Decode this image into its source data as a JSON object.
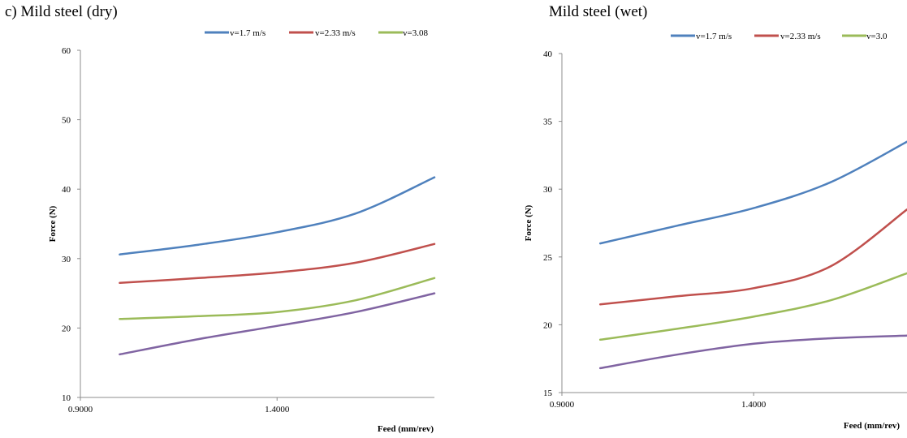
{
  "figure": {
    "left_panel_label": "c)    Mild steel (dry)",
    "right_panel_label": "Mild steel (wet)"
  },
  "chart_data": [
    {
      "type": "line",
      "title": "",
      "xlabel": "Feed (mm/rev)",
      "ylabel": "Force (N)",
      "xlim": [
        0.9,
        1.8
      ],
      "ylim": [
        10,
        60
      ],
      "xticks": [
        "0.9000",
        "1.4000"
      ],
      "xtick_values": [
        0.9,
        1.4
      ],
      "yticks": [
        "10",
        "20",
        "30",
        "40",
        "50",
        "60"
      ],
      "ytick_values": [
        10,
        20,
        30,
        40,
        50,
        60
      ],
      "legend_position": "top-right",
      "x": [
        1.0,
        1.2,
        1.4,
        1.6,
        1.8
      ],
      "series": [
        {
          "name": "v=1.7 m/s",
          "color": "#4F81BD",
          "values": [
            30.6,
            32.0,
            33.8,
            36.5,
            41.7
          ]
        },
        {
          "name": "v=2.33 m/s",
          "color": "#C0504D",
          "values": [
            26.5,
            27.2,
            28.0,
            29.4,
            32.1
          ]
        },
        {
          "name": "v=3.08",
          "color": "#9BBB59",
          "values": [
            21.3,
            21.7,
            22.3,
            24.0,
            27.2
          ]
        },
        {
          "name": "",
          "color": "#8064A2",
          "values": [
            16.2,
            18.4,
            20.3,
            22.3,
            25.0
          ]
        }
      ]
    },
    {
      "type": "line",
      "title": "",
      "xlabel": "Feed (mm/rev)",
      "ylabel": "Force (N)",
      "xlim": [
        0.9,
        1.8
      ],
      "ylim": [
        15,
        40
      ],
      "xticks": [
        "0.9000",
        "1.4000"
      ],
      "xtick_values": [
        0.9,
        1.4
      ],
      "yticks": [
        "15",
        "20",
        "25",
        "30",
        "35",
        "40"
      ],
      "ytick_values": [
        15,
        20,
        25,
        30,
        35,
        40
      ],
      "legend_position": "top-right",
      "x": [
        1.0,
        1.2,
        1.4,
        1.6,
        1.8
      ],
      "series": [
        {
          "name": "v=1.7 m/s",
          "color": "#4F81BD",
          "values": [
            26.0,
            27.3,
            28.6,
            30.5,
            33.5
          ]
        },
        {
          "name": "v=2.33 m/s",
          "color": "#C0504D",
          "values": [
            21.5,
            22.1,
            22.7,
            24.3,
            28.5
          ]
        },
        {
          "name": "v=3.0",
          "color": "#9BBB59",
          "values": [
            18.9,
            19.7,
            20.6,
            21.8,
            23.8
          ]
        },
        {
          "name": "",
          "color": "#8064A2",
          "values": [
            16.8,
            17.8,
            18.6,
            19.0,
            19.2
          ]
        }
      ]
    }
  ]
}
